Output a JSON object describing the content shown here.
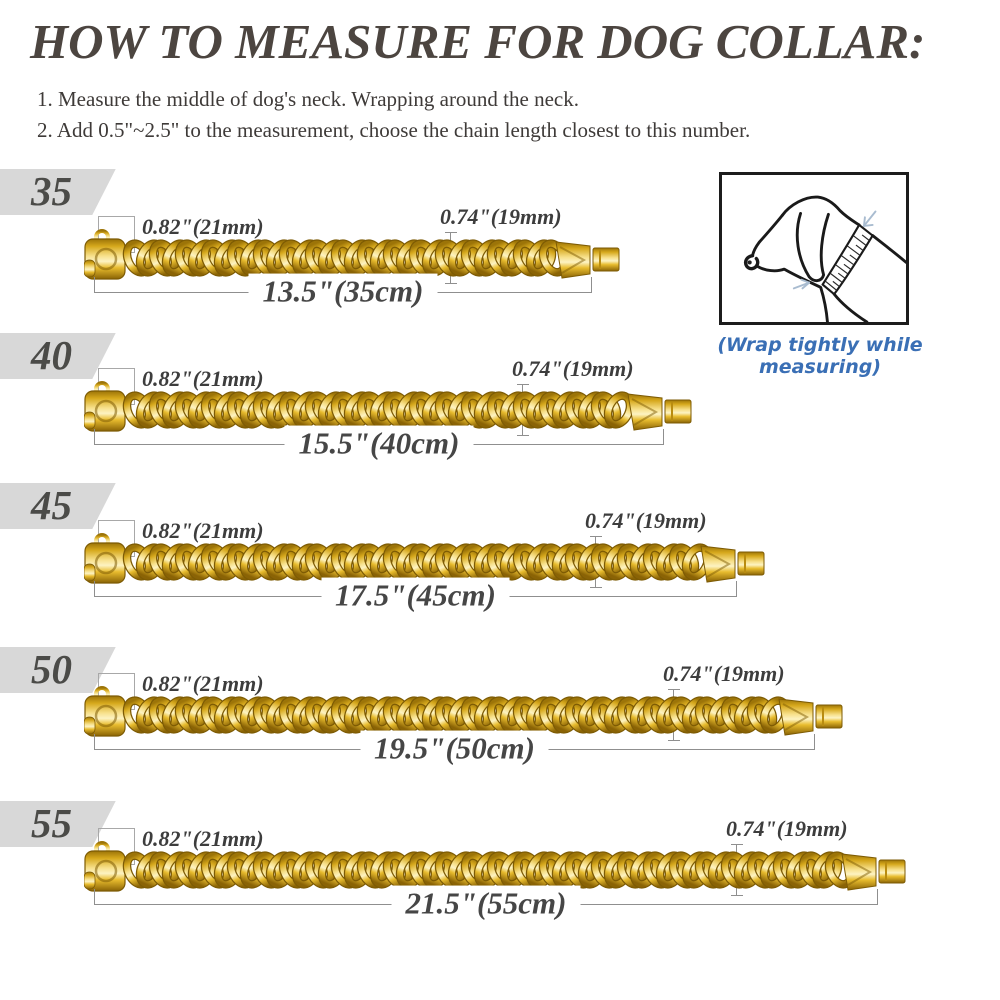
{
  "title": "HOW TO MEASURE FOR DOG COLLAR:",
  "instructions": {
    "step1": "1. Measure the middle of dog's neck. Wrapping around the neck.",
    "step2": "2. Add 0.5\"~2.5\" to the measurement, choose the chain length closest to this number."
  },
  "dog_figure": {
    "caption": "(Wrap tightly while measuring)"
  },
  "collars": [
    {
      "size": "35",
      "link_width": "0.82\"(21mm)",
      "link_height": "0.74\"(19mm)",
      "length": "13.5\"(35cm)"
    },
    {
      "size": "40",
      "link_width": "0.82\"(21mm)",
      "link_height": "0.74\"(19mm)",
      "length": "15.5\"(40cm)"
    },
    {
      "size": "45",
      "link_width": "0.82\"(21mm)",
      "link_height": "0.74\"(19mm)",
      "length": "17.5\"(45cm)"
    },
    {
      "size": "50",
      "link_width": "0.82\"(21mm)",
      "link_height": "0.74\"(19mm)",
      "length": "19.5\"(50cm)"
    },
    {
      "size": "55",
      "link_width": "0.82\"(21mm)",
      "link_height": "0.74\"(19mm)",
      "length": "21.5\"(55cm)"
    }
  ],
  "colors": {
    "title_text": "#4c4540",
    "body_text": "#3e3a38",
    "note_blue": "#3a6fb5",
    "size_tag_bg": "#d8d8d8",
    "gold_dark": "#8a6305",
    "gold_light": "#fdf3c2",
    "dimension_line": "#8f8f8f"
  }
}
